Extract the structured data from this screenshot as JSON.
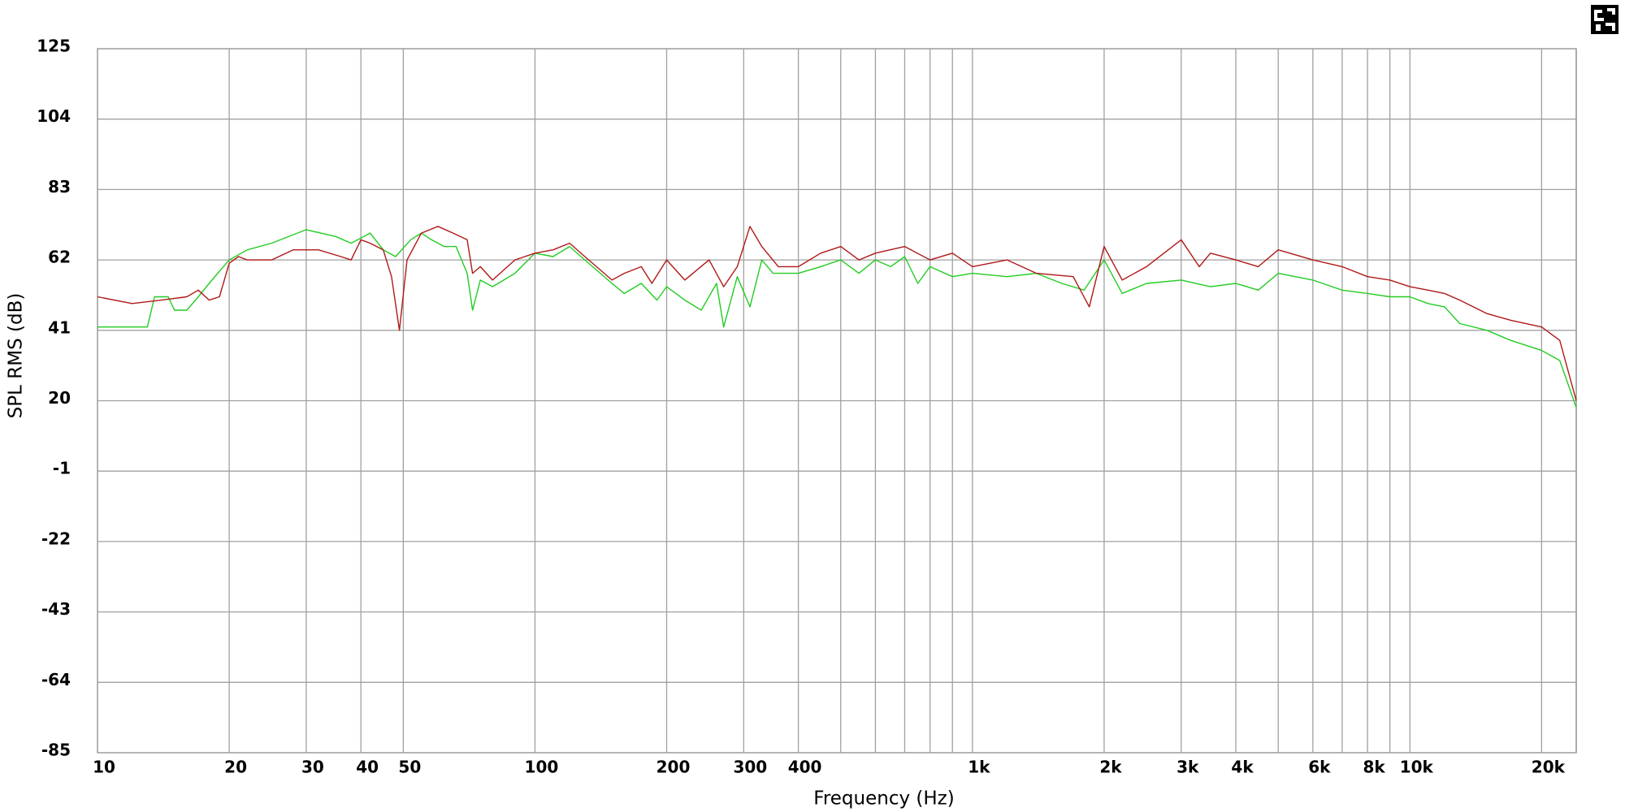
{
  "chart_data": {
    "type": "line",
    "xlabel": "Frequency (Hz)",
    "ylabel": "SPL RMS (dB)",
    "xscale": "log",
    "xlim": [
      10,
      24000
    ],
    "ylim": [
      -85,
      125
    ],
    "yticks": [
      -85,
      -64,
      -43,
      -22,
      -1,
      20,
      41,
      62,
      83,
      104,
      125
    ],
    "xticks": [
      10,
      20,
      30,
      40,
      50,
      100,
      200,
      300,
      400,
      {
        "value": 1000,
        "label": "1k"
      },
      {
        "value": 2000,
        "label": "2k"
      },
      {
        "value": 3000,
        "label": "3k"
      },
      {
        "value": 4000,
        "label": "4k"
      },
      {
        "value": 6000,
        "label": "6k"
      },
      {
        "value": 8000,
        "label": "8k"
      },
      {
        "value": 10000,
        "label": "10k"
      },
      {
        "value": 20000,
        "label": "20k"
      }
    ],
    "xminor": [
      500,
      600,
      700,
      800,
      900,
      5000,
      7000,
      9000
    ],
    "grid": true,
    "series": [
      {
        "color": "#22cc22",
        "x": [
          10,
          13,
          13.5,
          14.5,
          15,
          16,
          17,
          18,
          20,
          22,
          25,
          30,
          35,
          38,
          42,
          45,
          48,
          52,
          55,
          58,
          62,
          66,
          70,
          72,
          75,
          80,
          90,
          100,
          110,
          120,
          130,
          150,
          160,
          175,
          190,
          200,
          220,
          240,
          260,
          270,
          290,
          310,
          330,
          350,
          400,
          450,
          500,
          550,
          600,
          650,
          700,
          750,
          800,
          900,
          1000,
          1200,
          1400,
          1600,
          1800,
          2000,
          2200,
          2500,
          3000,
          3500,
          4000,
          4500,
          5000,
          6000,
          7000,
          8000,
          9000,
          10000,
          11000,
          12000,
          13000,
          15000,
          17000,
          20000,
          22000,
          24000
        ],
        "values": [
          42,
          42,
          51,
          51,
          47,
          47,
          51,
          55,
          62,
          65,
          67,
          71,
          69,
          67,
          70,
          65,
          63,
          68,
          70,
          68,
          66,
          66,
          58,
          47,
          56,
          54,
          58,
          64,
          63,
          66,
          62,
          55,
          52,
          55,
          50,
          54,
          50,
          47,
          55,
          42,
          57,
          48,
          62,
          58,
          58,
          60,
          62,
          58,
          62,
          60,
          63,
          55,
          60,
          57,
          58,
          57,
          58,
          55,
          53,
          62,
          52,
          55,
          56,
          54,
          55,
          53,
          58,
          56,
          53,
          52,
          51,
          51,
          49,
          48,
          43,
          41,
          38,
          35,
          32,
          18
        ]
      },
      {
        "color": "#b01818",
        "x": [
          10,
          12,
          14,
          16,
          17,
          18,
          19,
          20,
          21,
          22,
          25,
          28,
          32,
          36,
          38,
          40,
          42,
          45,
          47,
          49,
          51,
          55,
          60,
          65,
          70,
          72,
          75,
          80,
          90,
          100,
          110,
          120,
          130,
          150,
          160,
          175,
          185,
          200,
          220,
          250,
          270,
          290,
          310,
          330,
          360,
          400,
          450,
          500,
          550,
          600,
          700,
          800,
          900,
          1000,
          1200,
          1400,
          1700,
          1850,
          2000,
          2200,
          2500,
          3000,
          3300,
          3500,
          4000,
          4500,
          5000,
          6000,
          7000,
          8000,
          9000,
          10000,
          11000,
          12000,
          13000,
          15000,
          17000,
          20000,
          22000,
          24000
        ],
        "values": [
          51,
          49,
          50,
          51,
          53,
          50,
          51,
          61,
          63,
          62,
          62,
          65,
          65,
          63,
          62,
          68,
          67,
          65,
          57,
          41,
          62,
          70,
          72,
          70,
          68,
          58,
          60,
          56,
          62,
          64,
          65,
          67,
          63,
          56,
          58,
          60,
          55,
          62,
          56,
          62,
          54,
          60,
          72,
          66,
          60,
          60,
          64,
          66,
          62,
          64,
          66,
          62,
          64,
          60,
          62,
          58,
          57,
          48,
          66,
          56,
          60,
          68,
          60,
          64,
          62,
          60,
          65,
          62,
          60,
          57,
          56,
          54,
          53,
          52,
          50,
          46,
          44,
          42,
          38,
          20
        ]
      }
    ]
  }
}
